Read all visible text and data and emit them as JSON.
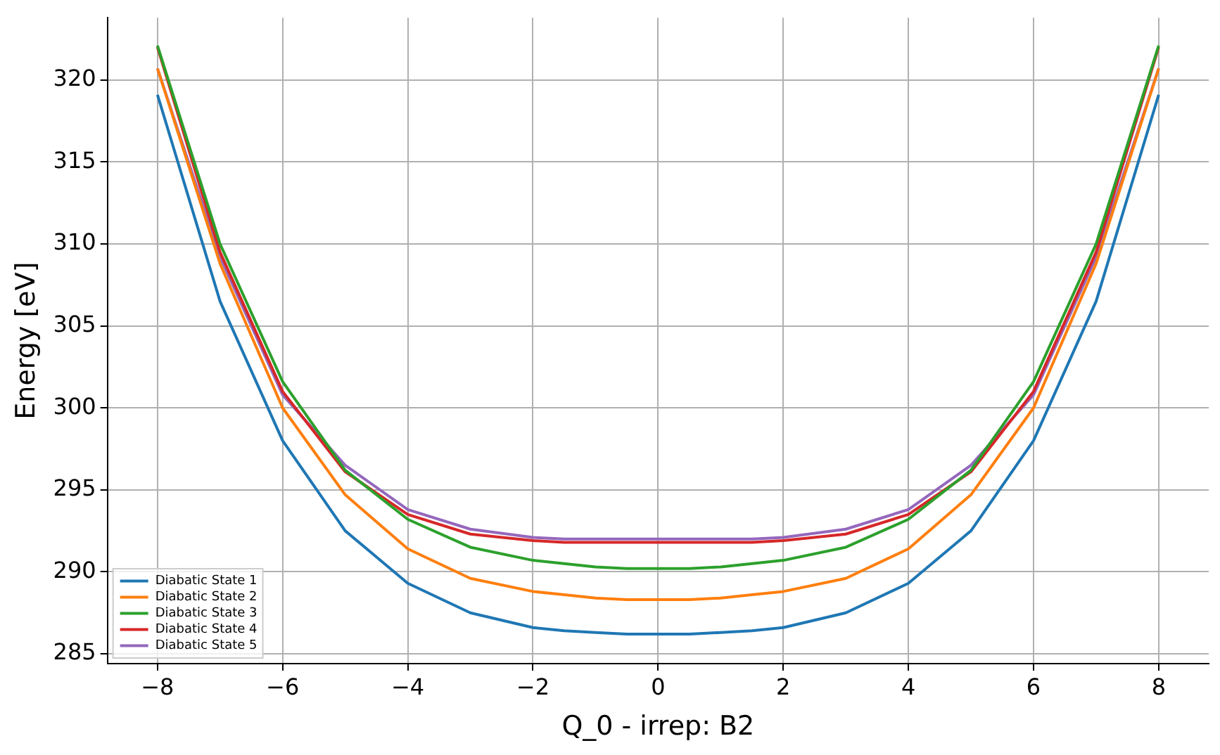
{
  "chart_data": {
    "type": "line",
    "xlabel": "Q_0 - irrep: B2",
    "ylabel": "Energy [eV]",
    "x": [
      -8,
      -7,
      -6,
      -5,
      -4,
      -3,
      -2,
      -1.5,
      -1,
      -0.5,
      0,
      0.5,
      1,
      1.5,
      2,
      3,
      4,
      5,
      6,
      7,
      8
    ],
    "xlim": [
      -8.8,
      8.8
    ],
    "ylim": [
      284.4,
      323.8
    ],
    "xticks": [
      {
        "value": -8,
        "label": "−8"
      },
      {
        "value": -6,
        "label": "−6"
      },
      {
        "value": -4,
        "label": "−4"
      },
      {
        "value": -2,
        "label": "−2"
      },
      0,
      2,
      4,
      6,
      8
    ],
    "yticks": [
      285,
      290,
      295,
      300,
      305,
      310,
      315,
      320
    ],
    "grid": true,
    "legend": "bottom left",
    "marker": "none",
    "line_style": "solid",
    "series": [
      {
        "name": "Diabatic State 1",
        "color": "#1f77b4",
        "values": [
          319.1,
          306.5,
          298.0,
          292.5,
          289.3,
          287.5,
          286.6,
          286.4,
          286.3,
          286.2,
          286.2,
          286.2,
          286.3,
          286.4,
          286.6,
          287.5,
          289.3,
          292.5,
          298.0,
          306.5,
          319.1
        ]
      },
      {
        "name": "Diabatic State 2",
        "color": "#ff7f0e",
        "values": [
          320.7,
          308.8,
          300.0,
          294.7,
          291.4,
          289.6,
          288.8,
          288.6,
          288.4,
          288.3,
          288.3,
          288.3,
          288.4,
          288.6,
          288.8,
          289.6,
          291.4,
          294.7,
          300.0,
          308.8,
          320.7
        ]
      },
      {
        "name": "Diabatic State 3",
        "color": "#2ca02c",
        "values": [
          322.1,
          310.0,
          301.6,
          296.2,
          293.2,
          291.5,
          290.7,
          290.5,
          290.3,
          290.2,
          290.2,
          290.2,
          290.3,
          290.5,
          290.7,
          291.5,
          293.2,
          296.2,
          301.6,
          310.0,
          322.1
        ]
      },
      {
        "name": "Diabatic State 4",
        "color": "#d62728",
        "values": [
          322.0,
          309.5,
          301.0,
          296.1,
          293.5,
          292.3,
          291.9,
          291.8,
          291.8,
          291.8,
          291.8,
          291.8,
          291.8,
          291.8,
          291.9,
          292.3,
          293.5,
          296.1,
          301.0,
          309.5,
          322.0
        ]
      },
      {
        "name": "Diabatic State 5",
        "color": "#9467bd",
        "values": [
          320.7,
          309.2,
          300.8,
          296.5,
          293.8,
          292.6,
          292.1,
          292.0,
          292.0,
          292.0,
          292.0,
          292.0,
          292.0,
          292.0,
          292.1,
          292.6,
          293.8,
          296.5,
          300.8,
          309.2,
          320.7
        ]
      }
    ]
  }
}
